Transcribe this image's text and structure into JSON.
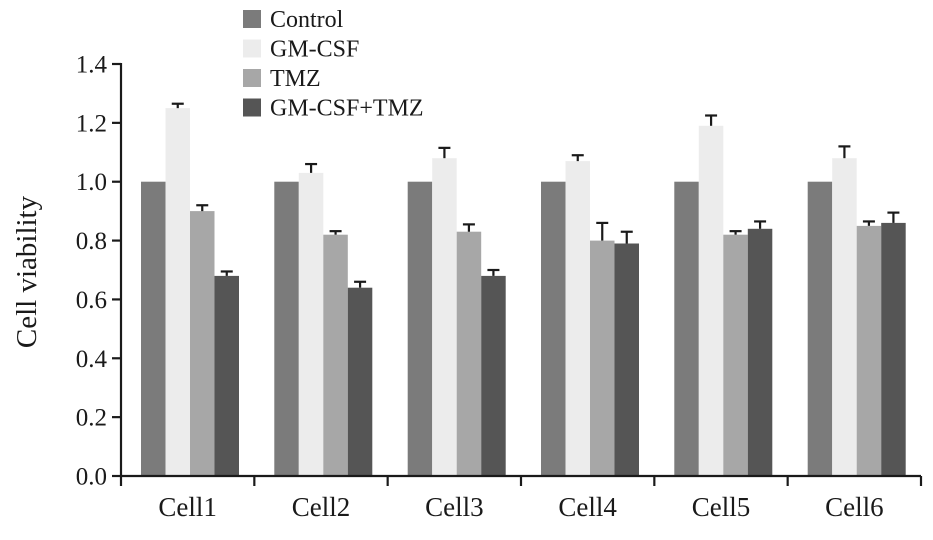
{
  "chart_data": {
    "type": "bar",
    "title": "",
    "xlabel": "",
    "ylabel": "Cell viability",
    "ylim": [
      0,
      1.4
    ],
    "yticks": [
      "0.0",
      "0.2",
      "0.4",
      "0.6",
      "0.8",
      "1.0",
      "1.2",
      "1.4"
    ],
    "grid": false,
    "legend_position": "top-left",
    "categories": [
      "Cell1",
      "Cell2",
      "Cell3",
      "Cell4",
      "Cell5",
      "Cell6"
    ],
    "series": [
      {
        "name": "Control",
        "color": "#7b7b7b",
        "values": [
          1.0,
          1.0,
          1.0,
          1.0,
          1.0,
          1.0
        ],
        "errors": [
          0,
          0,
          0,
          0,
          0,
          0
        ]
      },
      {
        "name": "GM-CSF",
        "color": "#ececec",
        "values": [
          1.25,
          1.03,
          1.08,
          1.07,
          1.19,
          1.08
        ],
        "errors": [
          0.015,
          0.03,
          0.035,
          0.02,
          0.035,
          0.04
        ]
      },
      {
        "name": "TMZ",
        "color": "#a7a7a7",
        "values": [
          0.9,
          0.82,
          0.83,
          0.8,
          0.82,
          0.85
        ],
        "errors": [
          0.02,
          0.012,
          0.025,
          0.06,
          0.012,
          0.015
        ]
      },
      {
        "name": "GM-CSF+TMZ",
        "color": "#555555",
        "values": [
          0.68,
          0.64,
          0.68,
          0.79,
          0.84,
          0.86
        ],
        "errors": [
          0.015,
          0.02,
          0.02,
          0.04,
          0.025,
          0.035
        ]
      }
    ]
  }
}
